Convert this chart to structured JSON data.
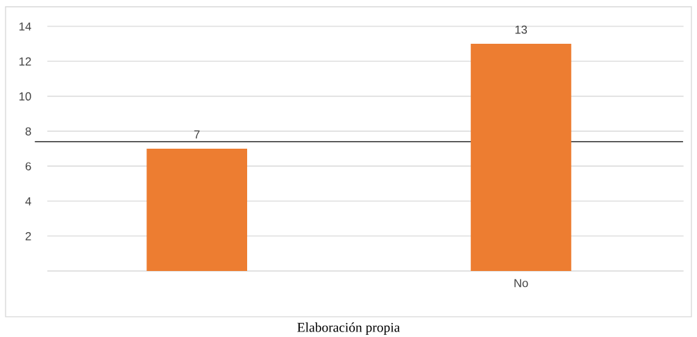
{
  "chart_data": {
    "type": "bar",
    "categories": [
      null,
      "No"
    ],
    "values": [
      7,
      13
    ],
    "color": "#ed7d31",
    "data_labels": true,
    "ylim": [
      0,
      14
    ],
    "yticks": [
      14,
      12,
      10,
      8,
      6,
      4,
      2,
      {
        "value": 0,
        "label": null
      }
    ],
    "grid": "y",
    "ref_lines": [
      {
        "axis": "y",
        "value": 7.4,
        "color": "#000000"
      }
    ],
    "annotations": [
      "Elaboración propia"
    ]
  }
}
